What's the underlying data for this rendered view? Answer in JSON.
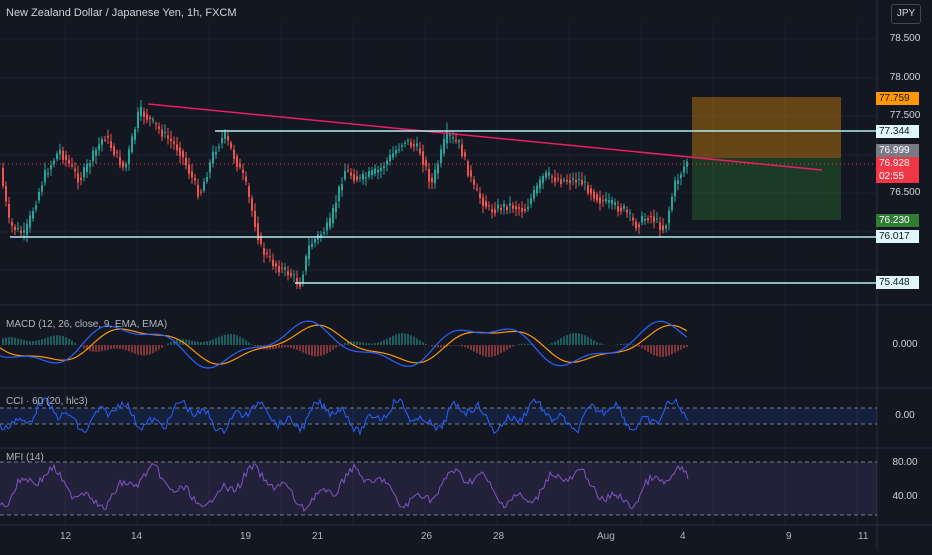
{
  "header": {
    "title": "New Zealand Dollar / Japanese Yen, 1h, FXCM",
    "currency_button": "JPY"
  },
  "price_axis": {
    "ticks": [
      "78.500",
      "78.000",
      "77.500",
      "76.500"
    ]
  },
  "price_tags": [
    {
      "label": "77.759",
      "bg": "#ff9800",
      "fg": "#131722"
    },
    {
      "label": "77.344",
      "bg": "#e0f7fa",
      "fg": "#131722"
    },
    {
      "label": "76.999",
      "bg": "#787b86",
      "fg": "#ffffff"
    },
    {
      "label": "76.928",
      "bg": "#f23645",
      "fg": "#ffffff"
    },
    {
      "label": "02:55",
      "bg": "#f23645",
      "fg": "#ffffff"
    },
    {
      "label": "76.230",
      "bg": "#2e7d32",
      "fg": "#ffffff"
    },
    {
      "label": "76.017",
      "bg": "#e0f7fa",
      "fg": "#131722"
    },
    {
      "label": "75.448",
      "bg": "#e0f7fa",
      "fg": "#131722"
    }
  ],
  "panes": {
    "macd": {
      "label": "MACD (12, 26, close, 9, EMA, EMA)",
      "axis_value": "0.000"
    },
    "cci": {
      "label": "CCI · 60 (20, hlc3)",
      "axis_value": "0.00"
    },
    "mfi": {
      "label": "MFI (14)",
      "axis_values": [
        "80.00",
        "40.00"
      ]
    }
  },
  "time_axis": [
    "12",
    "14",
    "19",
    "21",
    "26",
    "28",
    "Aug",
    "4",
    "9",
    "11"
  ],
  "colors": {
    "background": "#131722",
    "up_candle": "#26a69a",
    "down_candle": "#ef5350",
    "trendline": "#e91e63",
    "support_lines": "#b2ebf2",
    "macd_line": "#2962ff",
    "signal_line": "#ff9800",
    "cci_line": "#2962ff",
    "mfi_line": "#7e57c2"
  }
}
